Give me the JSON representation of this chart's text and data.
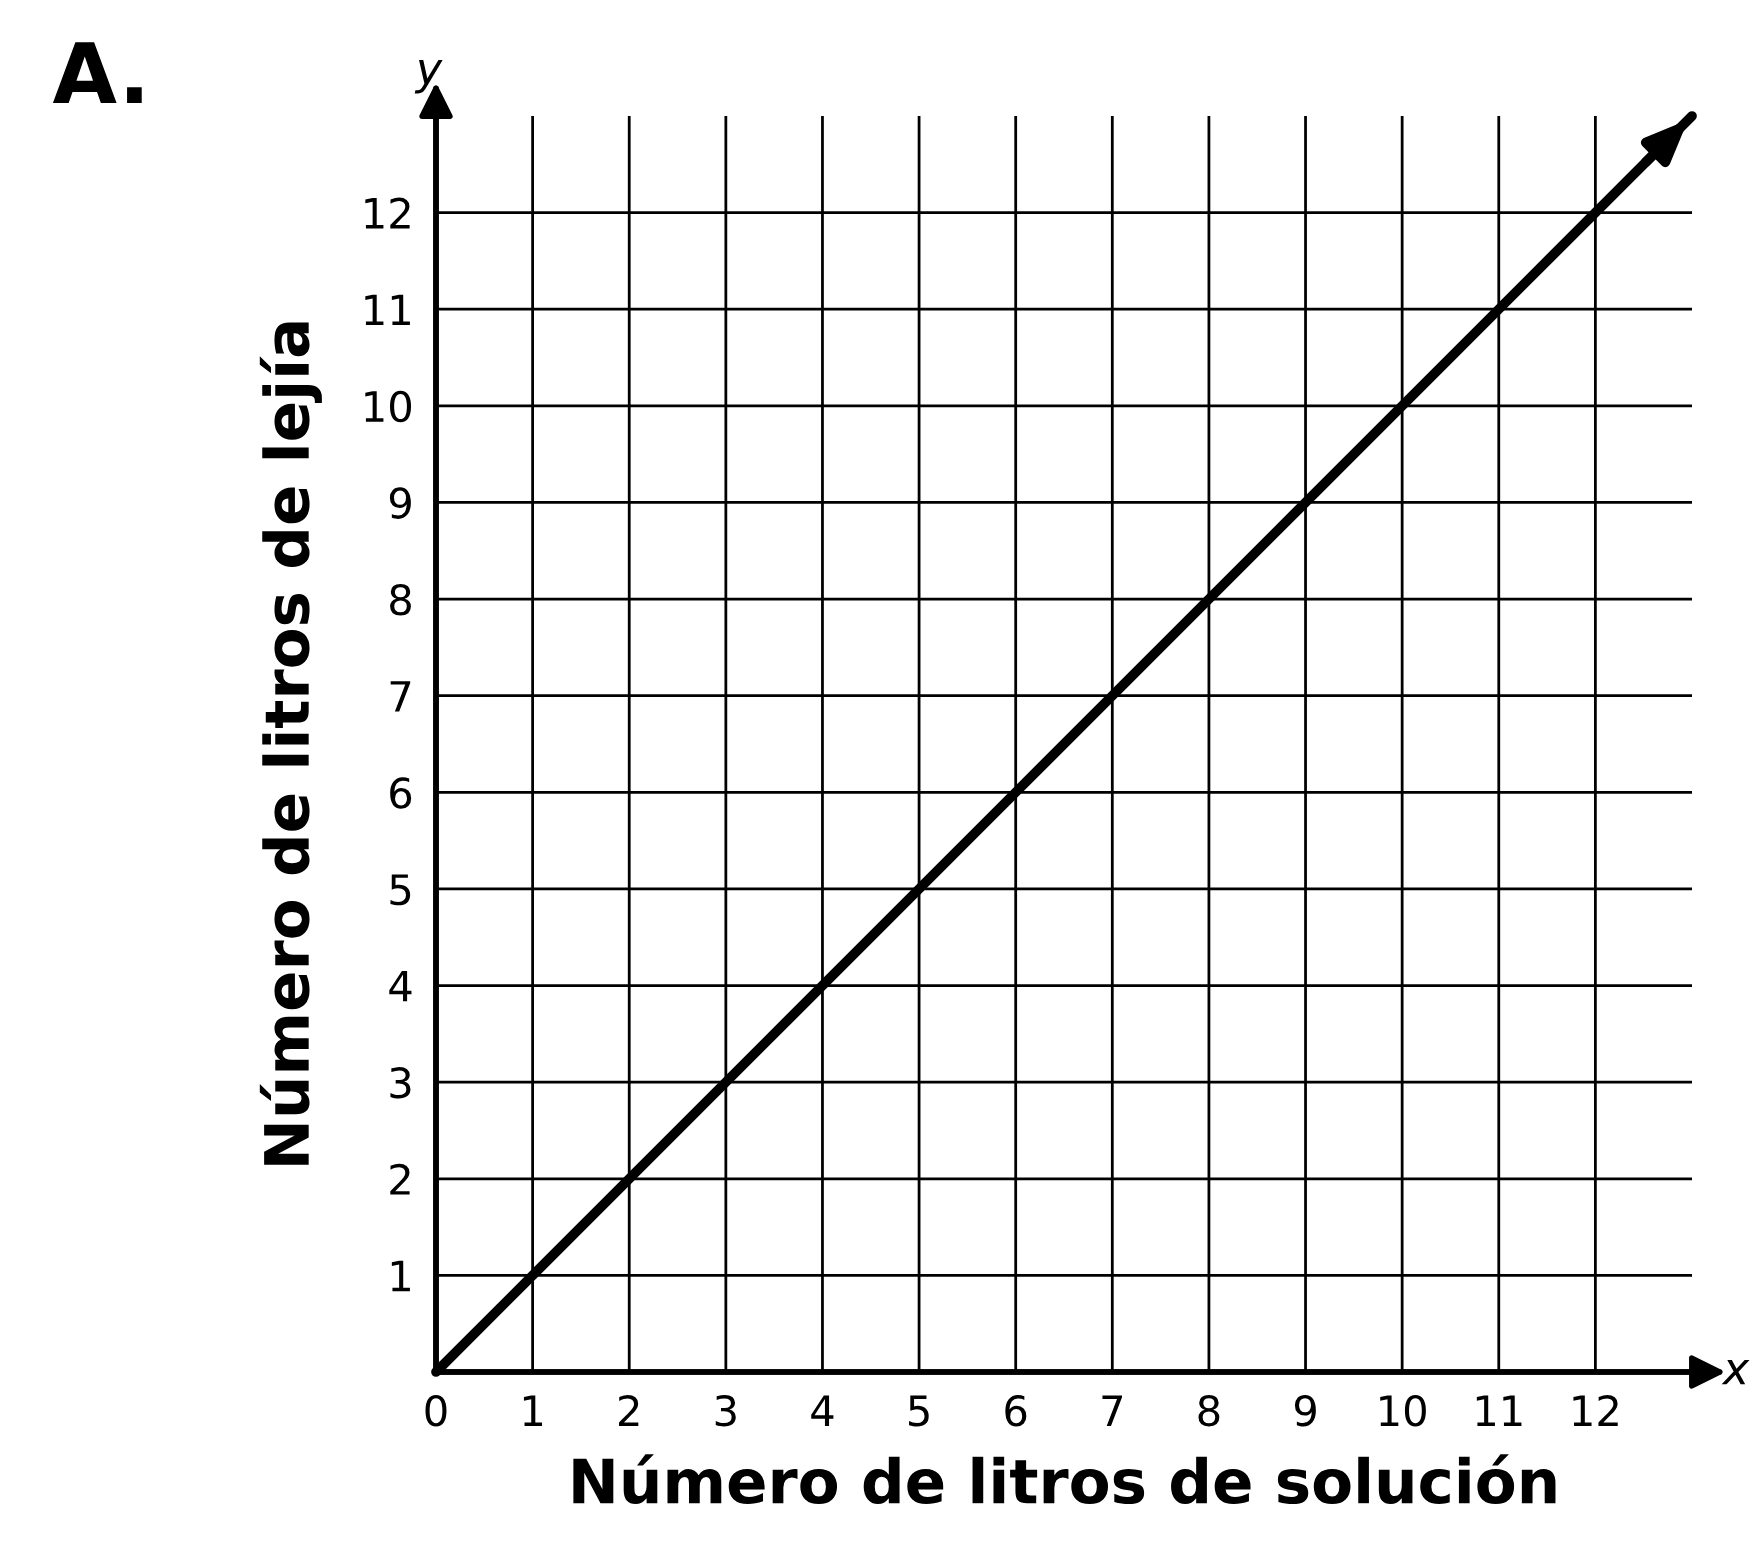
{
  "chart_data": {
    "type": "line",
    "title": "A.",
    "xlabel": "Número de litros de solución",
    "ylabel": "Número de litros de lejía",
    "annotations": [
      "x",
      "y"
    ],
    "x": [
      0,
      13
    ],
    "series": [
      {
        "color": "#000000",
        "values": [
          0,
          13
        ]
      }
    ],
    "xlim": [
      0,
      13
    ],
    "ylim": [
      0,
      13
    ],
    "xticks": [
      0,
      1,
      2,
      3,
      4,
      5,
      6,
      7,
      8,
      9,
      10,
      11,
      12
    ],
    "yticks": [
      1,
      2,
      3,
      4,
      5,
      6,
      7,
      8,
      9,
      10,
      11,
      12
    ],
    "grid": true,
    "marker": "none",
    "line_style": "solid"
  }
}
